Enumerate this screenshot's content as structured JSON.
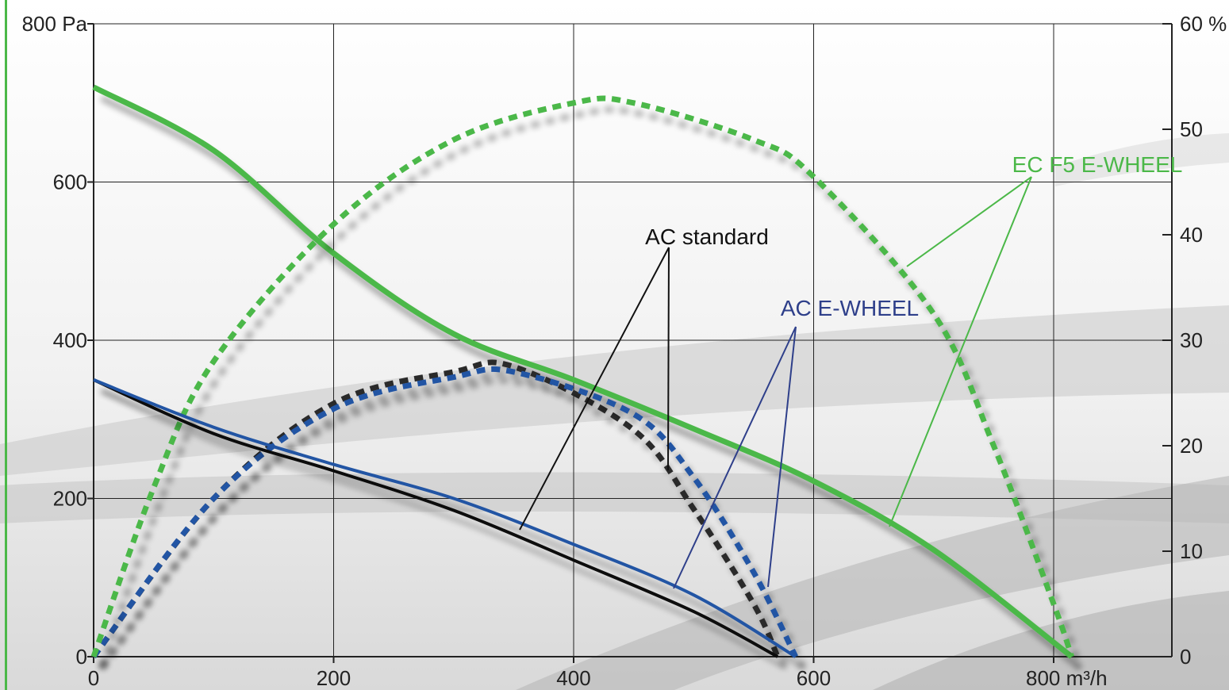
{
  "chart_data": {
    "type": "line",
    "title": "",
    "xlabel": "",
    "ylabel": "",
    "x_unit": "m³/h",
    "y_unit": "Pa",
    "y2_unit": "%",
    "xlim": [
      0,
      800
    ],
    "ylim": [
      0,
      800
    ],
    "y2lim": [
      0,
      60
    ],
    "x_ticks": [
      "0",
      "200",
      "400",
      "600",
      "800 m³/h"
    ],
    "y_ticks": [
      "0",
      "200",
      "400",
      "600",
      "800 Pa"
    ],
    "y2_ticks": [
      "0",
      "10",
      "20",
      "30",
      "40",
      "50",
      "60 %"
    ],
    "grid": true,
    "colors": {
      "ec": "#4bb848",
      "ac_std": "#111111",
      "ac_dash": "#2a2a2a",
      "ew": "#2455a4",
      "ew_label": "#2e3f8a",
      "axis": "#222222",
      "grid": "#222222"
    },
    "series": [
      {
        "key": "ec_pressure",
        "axis": "left",
        "style": "solid",
        "color_key": "ec",
        "points": [
          [
            0,
            720
          ],
          [
            100,
            640
          ],
          [
            200,
            510
          ],
          [
            300,
            408
          ],
          [
            400,
            350
          ],
          [
            500,
            288
          ],
          [
            600,
            222
          ],
          [
            700,
            135
          ],
          [
            815,
            0
          ]
        ]
      },
      {
        "key": "ec_efficiency",
        "axis": "right",
        "style": "dashed",
        "color_key": "ec",
        "points": [
          [
            0,
            0
          ],
          [
            50,
            16
          ],
          [
            100,
            28
          ],
          [
            200,
            41
          ],
          [
            300,
            49
          ],
          [
            400,
            52.5
          ],
          [
            450,
            52.5
          ],
          [
            550,
            49
          ],
          [
            600,
            45.5
          ],
          [
            700,
            32.5
          ],
          [
            750,
            20
          ],
          [
            800,
            5
          ],
          [
            815,
            0
          ]
        ]
      },
      {
        "key": "ac_std_pressure",
        "axis": "left",
        "style": "solid",
        "color_key": "ac_std",
        "points": [
          [
            0,
            350
          ],
          [
            100,
            282
          ],
          [
            200,
            235
          ],
          [
            300,
            185
          ],
          [
            400,
            122
          ],
          [
            500,
            57
          ],
          [
            570,
            0
          ]
        ]
      },
      {
        "key": "ac_std_efficiency",
        "axis": "right",
        "style": "dashed",
        "color_key": "ac_dash",
        "points": [
          [
            0,
            0
          ],
          [
            100,
            15
          ],
          [
            200,
            24
          ],
          [
            300,
            27
          ],
          [
            350,
            27.5
          ],
          [
            450,
            21.5
          ],
          [
            500,
            14
          ],
          [
            550,
            5
          ],
          [
            570,
            0
          ]
        ]
      },
      {
        "key": "ac_ew_pressure",
        "axis": "left",
        "style": "solid",
        "color_key": "ew",
        "points": [
          [
            0,
            350
          ],
          [
            100,
            290
          ],
          [
            200,
            243
          ],
          [
            300,
            200
          ],
          [
            400,
            142
          ],
          [
            500,
            78
          ],
          [
            585,
            0
          ]
        ]
      },
      {
        "key": "ac_ew_efficiency",
        "axis": "right",
        "style": "dashed",
        "color_key": "ew",
        "points": [
          [
            0,
            0
          ],
          [
            100,
            15
          ],
          [
            200,
            23.5
          ],
          [
            300,
            26.5
          ],
          [
            350,
            27
          ],
          [
            450,
            23
          ],
          [
            500,
            17
          ],
          [
            550,
            8
          ],
          [
            585,
            0
          ]
        ]
      }
    ],
    "annotations": [
      {
        "text": "EC F5 E-WHEEL",
        "color_key": "ec",
        "pos": [
          1383,
          217
        ],
        "fontsize": 28,
        "anchor": [
          1300,
          223
        ],
        "targets": [
          [
            1143,
            336
          ],
          [
            1121,
            664
          ]
        ]
      },
      {
        "text": "AC standard",
        "color_key": "ac_std",
        "pos": [
          891,
          308
        ],
        "fontsize": 28,
        "anchor": [
          843,
          312
        ],
        "targets": [
          [
            655,
            668
          ],
          [
            842,
            593
          ]
        ]
      },
      {
        "text": "AC E-WHEEL",
        "color_key": "ew_label",
        "pos": [
          1071,
          398
        ],
        "fontsize": 28,
        "anchor": [
          1003,
          412
        ],
        "targets": [
          [
            849,
            742
          ],
          [
            968,
            740
          ]
        ]
      }
    ]
  }
}
